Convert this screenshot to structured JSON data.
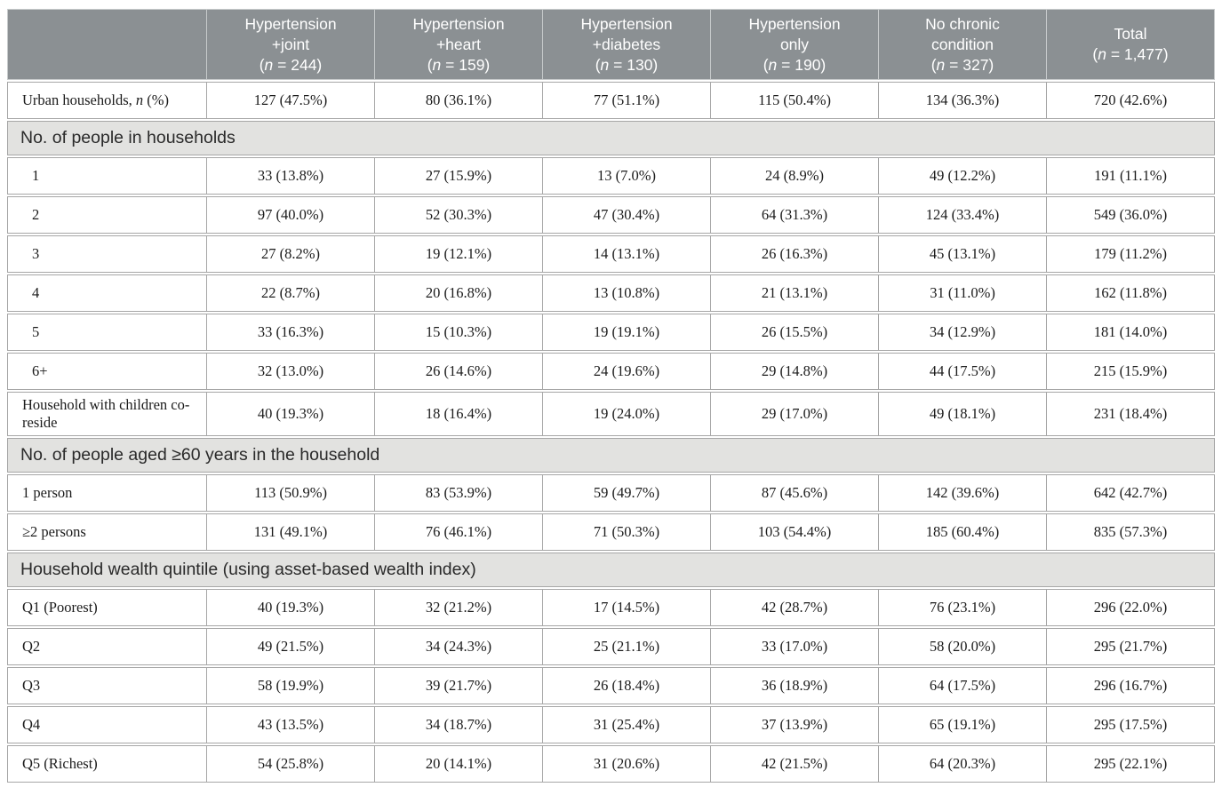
{
  "colors": {
    "header_bg": "#8B9093",
    "header_text": "#FFFFFF",
    "header_separator": "#C7CACB",
    "section_bg": "#E2E2E0",
    "body_bg": "#FFFFFF",
    "cell_border": "#A6A6A6",
    "body_text": "#1B1B1B"
  },
  "table": {
    "corner_label": "",
    "columns": [
      {
        "title_lines": [
          "Hypertension",
          "+joint"
        ],
        "n": "244"
      },
      {
        "title_lines": [
          "Hypertension",
          "+heart"
        ],
        "n": "159"
      },
      {
        "title_lines": [
          "Hypertension",
          "+diabetes"
        ],
        "n": "130"
      },
      {
        "title_lines": [
          "Hypertension",
          "only"
        ],
        "n": "190"
      },
      {
        "title_lines": [
          "No chronic",
          "condition"
        ],
        "n": "327"
      },
      {
        "title_lines": [
          "Total"
        ],
        "n": "1,477"
      }
    ],
    "rows": [
      {
        "type": "data",
        "indent": false,
        "label": "Urban households, *n* (%)",
        "values": [
          "127 (47.5%)",
          "80 (36.1%)",
          "77 (51.1%)",
          "115 (50.4%)",
          "134 (36.3%)",
          "720 (42.6%)"
        ]
      },
      {
        "type": "section",
        "label": "No. of people in households"
      },
      {
        "type": "data",
        "indent": true,
        "label": "1",
        "values": [
          "33 (13.8%)",
          "27 (15.9%)",
          "13 (7.0%)",
          "24 (8.9%)",
          "49 (12.2%)",
          "191 (11.1%)"
        ]
      },
      {
        "type": "data",
        "indent": true,
        "label": "2",
        "values": [
          "97 (40.0%)",
          "52 (30.3%)",
          "47 (30.4%)",
          "64 (31.3%)",
          "124 (33.4%)",
          "549 (36.0%)"
        ]
      },
      {
        "type": "data",
        "indent": true,
        "label": "3",
        "values": [
          "27 (8.2%)",
          "19 (12.1%)",
          "14 (13.1%)",
          "26 (16.3%)",
          "45 (13.1%)",
          "179 (11.2%)"
        ]
      },
      {
        "type": "data",
        "indent": true,
        "label": "4",
        "values": [
          "22 (8.7%)",
          "20 (16.8%)",
          "13 (10.8%)",
          "21 (13.1%)",
          "31 (11.0%)",
          "162 (11.8%)"
        ]
      },
      {
        "type": "data",
        "indent": true,
        "label": "5",
        "values": [
          "33 (16.3%)",
          "15 (10.3%)",
          "19 (19.1%)",
          "26 (15.5%)",
          "34 (12.9%)",
          "181 (14.0%)"
        ]
      },
      {
        "type": "data",
        "indent": true,
        "label": "6+",
        "values": [
          "32 (13.0%)",
          "26 (14.6%)",
          "24 (19.6%)",
          "29 (14.8%)",
          "44 (17.5%)",
          "215 (15.9%)"
        ]
      },
      {
        "type": "data",
        "indent": false,
        "label": "Household with children co-reside",
        "values": [
          "40 (19.3%)",
          "18 (16.4%)",
          "19 (24.0%)",
          "29 (17.0%)",
          "49 (18.1%)",
          "231 (18.4%)"
        ]
      },
      {
        "type": "section",
        "label": "No. of people aged ≥60 years in the household"
      },
      {
        "type": "data",
        "indent": false,
        "label": "1 person",
        "values": [
          "113 (50.9%)",
          "83 (53.9%)",
          "59 (49.7%)",
          "87 (45.6%)",
          "142 (39.6%)",
          "642 (42.7%)"
        ]
      },
      {
        "type": "data",
        "indent": false,
        "label": "≥2 persons",
        "values": [
          "131 (49.1%)",
          "76 (46.1%)",
          "71 (50.3%)",
          "103 (54.4%)",
          "185 (60.4%)",
          "835 (57.3%)"
        ]
      },
      {
        "type": "section",
        "label": "Household wealth quintile (using asset-based wealth index)"
      },
      {
        "type": "data",
        "indent": false,
        "label": "Q1 (Poorest)",
        "values": [
          "40 (19.3%)",
          "32 (21.2%)",
          "17 (14.5%)",
          "42 (28.7%)",
          "76 (23.1%)",
          "296 (22.0%)"
        ]
      },
      {
        "type": "data",
        "indent": false,
        "label": "Q2",
        "values": [
          "49 (21.5%)",
          "34 (24.3%)",
          "25 (21.1%)",
          "33 (17.0%)",
          "58 (20.0%)",
          "295 (21.7%)"
        ]
      },
      {
        "type": "data",
        "indent": false,
        "label": "Q3",
        "values": [
          "58 (19.9%)",
          "39 (21.7%)",
          "26 (18.4%)",
          "36 (18.9%)",
          "64 (17.5%)",
          "296 (16.7%)"
        ]
      },
      {
        "type": "data",
        "indent": false,
        "label": "Q4",
        "values": [
          "43 (13.5%)",
          "34 (18.7%)",
          "31 (25.4%)",
          "37 (13.9%)",
          "65 (19.1%)",
          "295 (17.5%)"
        ]
      },
      {
        "type": "data",
        "indent": false,
        "label": "Q5 (Richest)",
        "values": [
          "54 (25.8%)",
          "20 (14.1%)",
          "31 (20.6%)",
          "42 (21.5%)",
          "64 (20.3%)",
          "295 (22.1%)"
        ]
      }
    ]
  }
}
